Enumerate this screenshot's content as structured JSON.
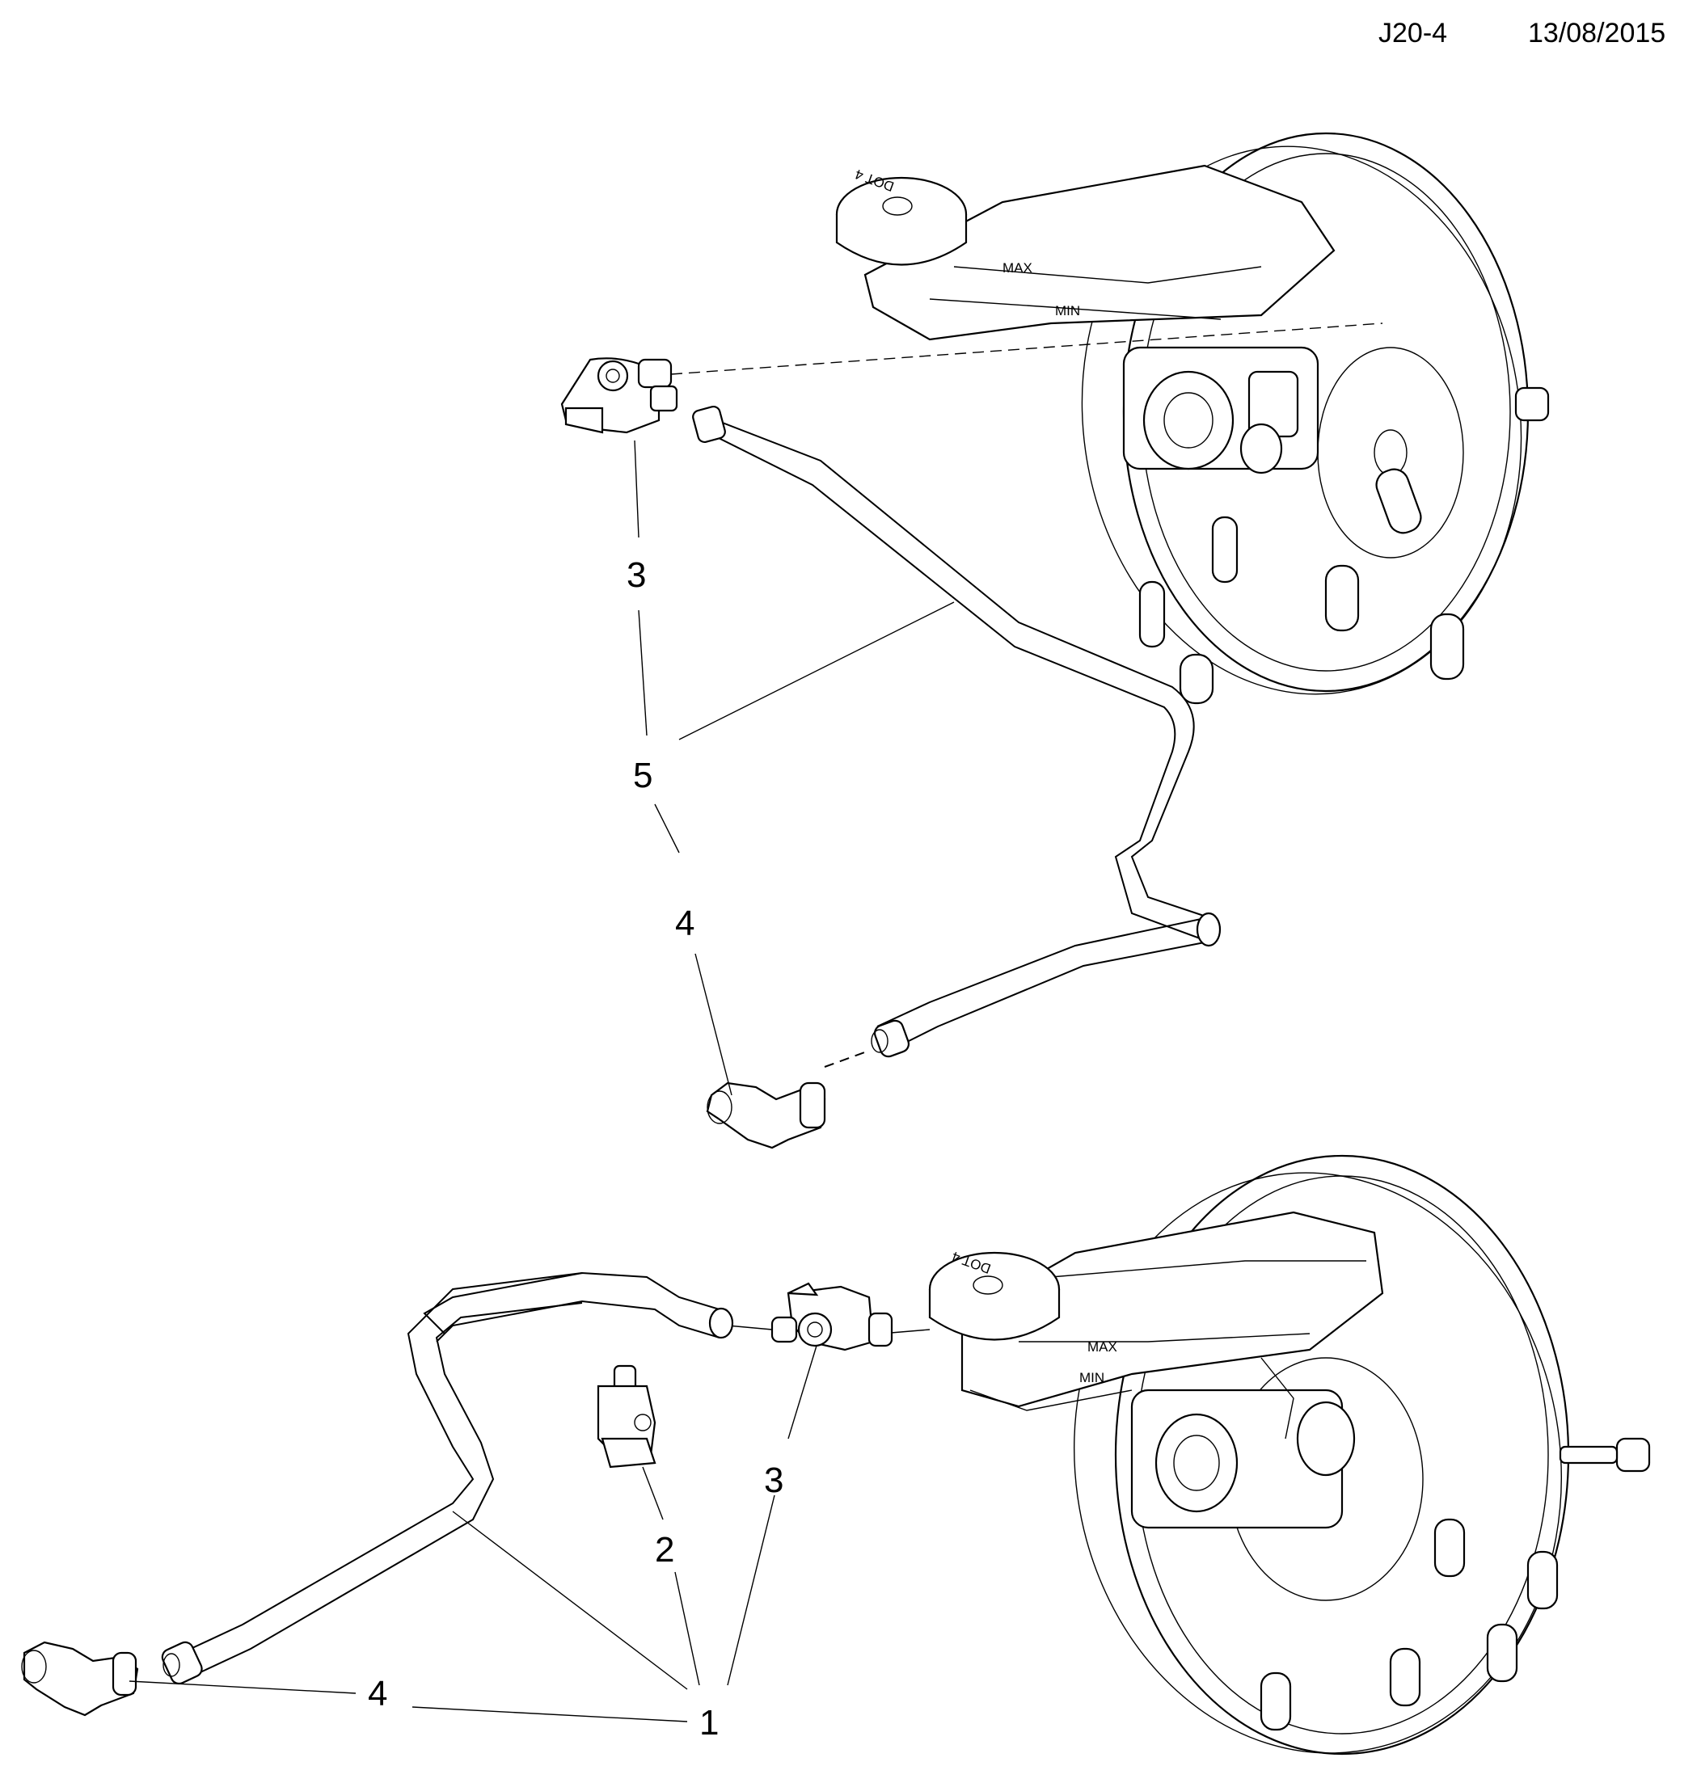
{
  "header": {
    "code": "J20-4",
    "date": "13/08/2015"
  },
  "reservoir_marks": {
    "cap": "DOT 4",
    "max": "MAX",
    "min": "MIN"
  },
  "callouts": {
    "top": [
      "3",
      "5",
      "4"
    ],
    "bottom": [
      "3",
      "2",
      "4",
      "1"
    ]
  }
}
